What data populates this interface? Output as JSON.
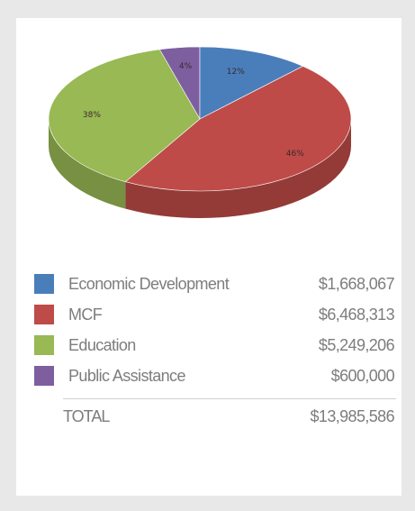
{
  "chart_data": {
    "type": "pie",
    "slices": [
      {
        "label": "Economic Development",
        "amount": "$1,668,067",
        "value": 1668067,
        "percent_label": "12%",
        "color": "#4a7ebb"
      },
      {
        "label": "MCF",
        "amount": "$6,468,313",
        "value": 6468313,
        "percent_label": "46%",
        "color": "#be4b48"
      },
      {
        "label": "Education",
        "amount": "$5,249,206",
        "value": 5249206,
        "percent_label": "38%",
        "color": "#98b954"
      },
      {
        "label": "Public Assistance",
        "amount": "$600,000",
        "value": 600000,
        "percent_label": "4%",
        "color": "#7d5fa0"
      }
    ],
    "total_label": "TOTAL",
    "total_amount": "$13,985,586"
  }
}
